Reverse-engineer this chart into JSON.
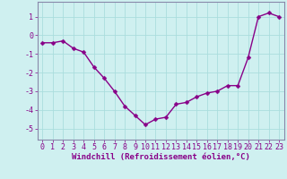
{
  "x": [
    0,
    1,
    2,
    3,
    4,
    5,
    6,
    7,
    8,
    9,
    10,
    11,
    12,
    13,
    14,
    15,
    16,
    17,
    18,
    19,
    20,
    21,
    22,
    23
  ],
  "y": [
    -0.4,
    -0.4,
    -0.3,
    -0.7,
    -0.9,
    -1.7,
    -2.3,
    -3.0,
    -3.8,
    -4.3,
    -4.8,
    -4.5,
    -4.4,
    -3.7,
    -3.6,
    -3.3,
    -3.1,
    -3.0,
    -2.7,
    -2.7,
    -1.2,
    1.0,
    1.2,
    1.0
  ],
  "line_color": "#880088",
  "marker": "D",
  "marker_size": 2.5,
  "bg_color": "#cff0f0",
  "grid_color": "#aadddd",
  "axis_color": "#880088",
  "spine_color": "#8888aa",
  "xlabel": "Windchill (Refroidissement éolien,°C)",
  "ylabel": "",
  "title": "",
  "xlim": [
    -0.5,
    23.5
  ],
  "ylim": [
    -5.6,
    1.8
  ],
  "yticks": [
    1,
    0,
    -1,
    -2,
    -3,
    -4,
    -5
  ],
  "xticks": [
    0,
    1,
    2,
    3,
    4,
    5,
    6,
    7,
    8,
    9,
    10,
    11,
    12,
    13,
    14,
    15,
    16,
    17,
    18,
    19,
    20,
    21,
    22,
    23
  ],
  "xtick_labels": [
    "0",
    "1",
    "2",
    "3",
    "4",
    "5",
    "6",
    "7",
    "8",
    "9",
    "10",
    "11",
    "12",
    "13",
    "14",
    "15",
    "16",
    "17",
    "18",
    "19",
    "20",
    "21",
    "22",
    "23"
  ],
  "font_family": "monospace",
  "xlabel_fontsize": 6.5,
  "tick_fontsize": 6.0
}
